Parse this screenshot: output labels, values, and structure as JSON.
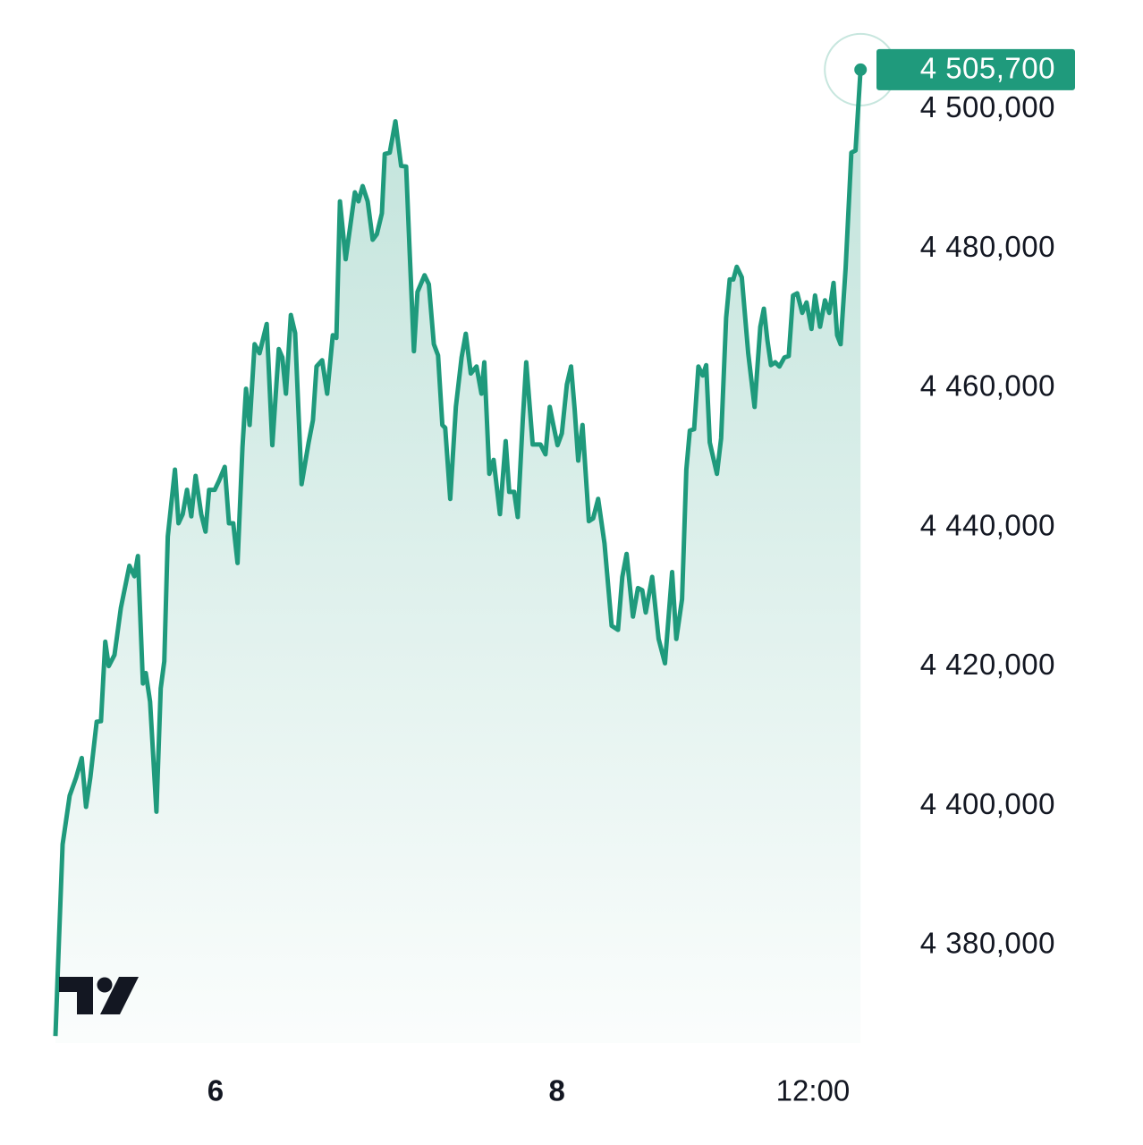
{
  "chart_data": {
    "type": "area",
    "color": "#1f9a7c",
    "x": [
      -22.5,
      -22.0,
      -21.5,
      -20.5,
      -19.6,
      -18.8,
      -18.2,
      -17.6,
      -16.7,
      -16.1,
      -15.5,
      -15.0,
      -14.2,
      -13.3,
      -12.1,
      -11.4,
      -10.9,
      -10.2,
      -9.8,
      -9.2,
      -8.3,
      -7.7,
      -7.2,
      -6.7,
      -5.7,
      -5.2,
      -4.6,
      -4.0,
      -3.4,
      -2.8,
      -2.0,
      -1.4,
      -0.9,
      -0.1,
      0.5,
      1.3,
      1.9,
      2.5,
      3.1,
      3.8,
      4.3,
      4.8,
      5.5,
      6.2,
      7.2,
      8.0,
      8.9,
      9.4,
      9.9,
      10.6,
      11.2,
      12.1,
      13.1,
      13.7,
      14.2,
      15.0,
      15.7,
      16.5,
      17.0,
      17.5,
      18.3,
      18.8,
      19.6,
      20.1,
      20.7,
      21.4,
      22.1,
      22.7,
      23.4,
      23.8,
      24.5,
      25.3,
      26.1,
      26.8,
      27.3,
      27.9,
      28.4,
      29.4,
      30.0,
      30.7,
      31.3,
      31.9,
      32.3,
      33.0,
      33.8,
      34.6,
      35.2,
      35.9,
      36.7,
      37.4,
      37.8,
      38.5,
      39.1,
      40.0,
      40.8,
      41.3,
      42.0,
      42.5,
      43.2,
      43.7,
      44.6,
      45.7,
      46.4,
      47.0,
      47.5,
      48.1,
      48.7,
      49.4,
      50.0,
      50.5,
      51.0,
      51.6,
      52.5,
      53.1,
      53.8,
      54.7,
      55.7,
      56.6,
      57.2,
      57.8,
      58.7,
      59.4,
      60.0,
      60.5,
      61.4,
      62.3,
      63.2,
      64.2,
      64.8,
      65.6,
      66.2,
      66.7,
      67.3,
      67.9,
      68.5,
      69.0,
      69.5,
      70.5,
      71.1,
      71.8,
      72.3,
      72.8,
      73.3,
      74.0,
      74.9,
      75.8,
      76.6,
      77.1,
      77.6,
      78.1,
      78.7,
      79.3,
      80.0,
      80.6,
      81.2,
      81.8,
      82.5,
      83.1,
      83.8,
      84.3,
      85.0,
      85.7,
      86.3,
      86.9,
      87.4,
      87.9,
      88.6,
      89.4,
      90.0,
      90.7
    ],
    "values": [
      4367000,
      4381000,
      4394500,
      4401500,
      4404100,
      4406900,
      4399900,
      4404100,
      4412100,
      4412200,
      4423600,
      4420100,
      4421700,
      4428500,
      4434500,
      4433000,
      4435900,
      4417600,
      4419100,
      4415000,
      4399200,
      4416900,
      4420800,
      4438700,
      4448300,
      4440600,
      4441900,
      4445400,
      4441600,
      4447400,
      4441900,
      4439400,
      4445400,
      4445400,
      4446700,
      4448700,
      4440600,
      4440600,
      4434900,
      4451500,
      4459900,
      4454700,
      4466300,
      4465000,
      4469200,
      4451800,
      4465600,
      4464400,
      4459200,
      4470500,
      4467900,
      4446200,
      4452200,
      4455400,
      4463100,
      4464000,
      4459200,
      4467600,
      4467200,
      4486800,
      4478500,
      4482100,
      4488100,
      4486800,
      4489000,
      4486800,
      4481300,
      4482100,
      4485100,
      4493600,
      4493800,
      4498300,
      4491900,
      4491800,
      4479700,
      4465300,
      4473800,
      4476200,
      4474900,
      4466300,
      4464700,
      4454700,
      4454300,
      4444100,
      4457300,
      4464400,
      4467800,
      4462100,
      4463100,
      4459200,
      4463700,
      4447700,
      4449700,
      4441900,
      4452400,
      4445100,
      4445100,
      4441500,
      4455400,
      4463700,
      4451900,
      4451900,
      4450500,
      4457300,
      4454700,
      4451800,
      4453500,
      4460500,
      4463100,
      4457000,
      4449600,
      4454700,
      4440900,
      4441300,
      4444100,
      4437700,
      4425900,
      4425300,
      4432900,
      4436200,
      4427200,
      4431300,
      4431000,
      4427800,
      4432900,
      4424000,
      4420500,
      4433600,
      4424000,
      4429700,
      4448300,
      4453900,
      4454100,
      4463100,
      4461800,
      4463300,
      4452200,
      4447700,
      4452800,
      4470100,
      4475600,
      4475600,
      4477400,
      4475900,
      4465000,
      4457300,
      4468800,
      4471400,
      4466900,
      4463300,
      4463700,
      4463100,
      4464400,
      4464600,
      4473300,
      4473600,
      4470800,
      4472300,
      4468500,
      4473300,
      4468800,
      4472600,
      4470800,
      4475100,
      4467600,
      4466300,
      4477200,
      4493800,
      4494100,
      4505700
    ],
    "last_price": {
      "value": 4505700,
      "label": "4 505,700"
    },
    "xlim": [
      -22.5,
      90.8
    ],
    "xticks": [
      {
        "value": 0,
        "label": "6"
      },
      {
        "value": 48,
        "label": "8"
      },
      {
        "value": 84,
        "label": "12:00"
      }
    ],
    "ylim": [
      4366000,
      4508000
    ],
    "yticks": [
      {
        "value": 4380000,
        "label": "4 380,000"
      },
      {
        "value": 4400000,
        "label": "4 400,000"
      },
      {
        "value": 4420000,
        "label": "4 420,000"
      },
      {
        "value": 4440000,
        "label": "4 440,000"
      },
      {
        "value": 4460000,
        "label": "4 460,000"
      },
      {
        "value": 4480000,
        "label": "4 480,000"
      },
      {
        "value": 4500000,
        "label": "4 500,000"
      }
    ],
    "grid": false
  }
}
